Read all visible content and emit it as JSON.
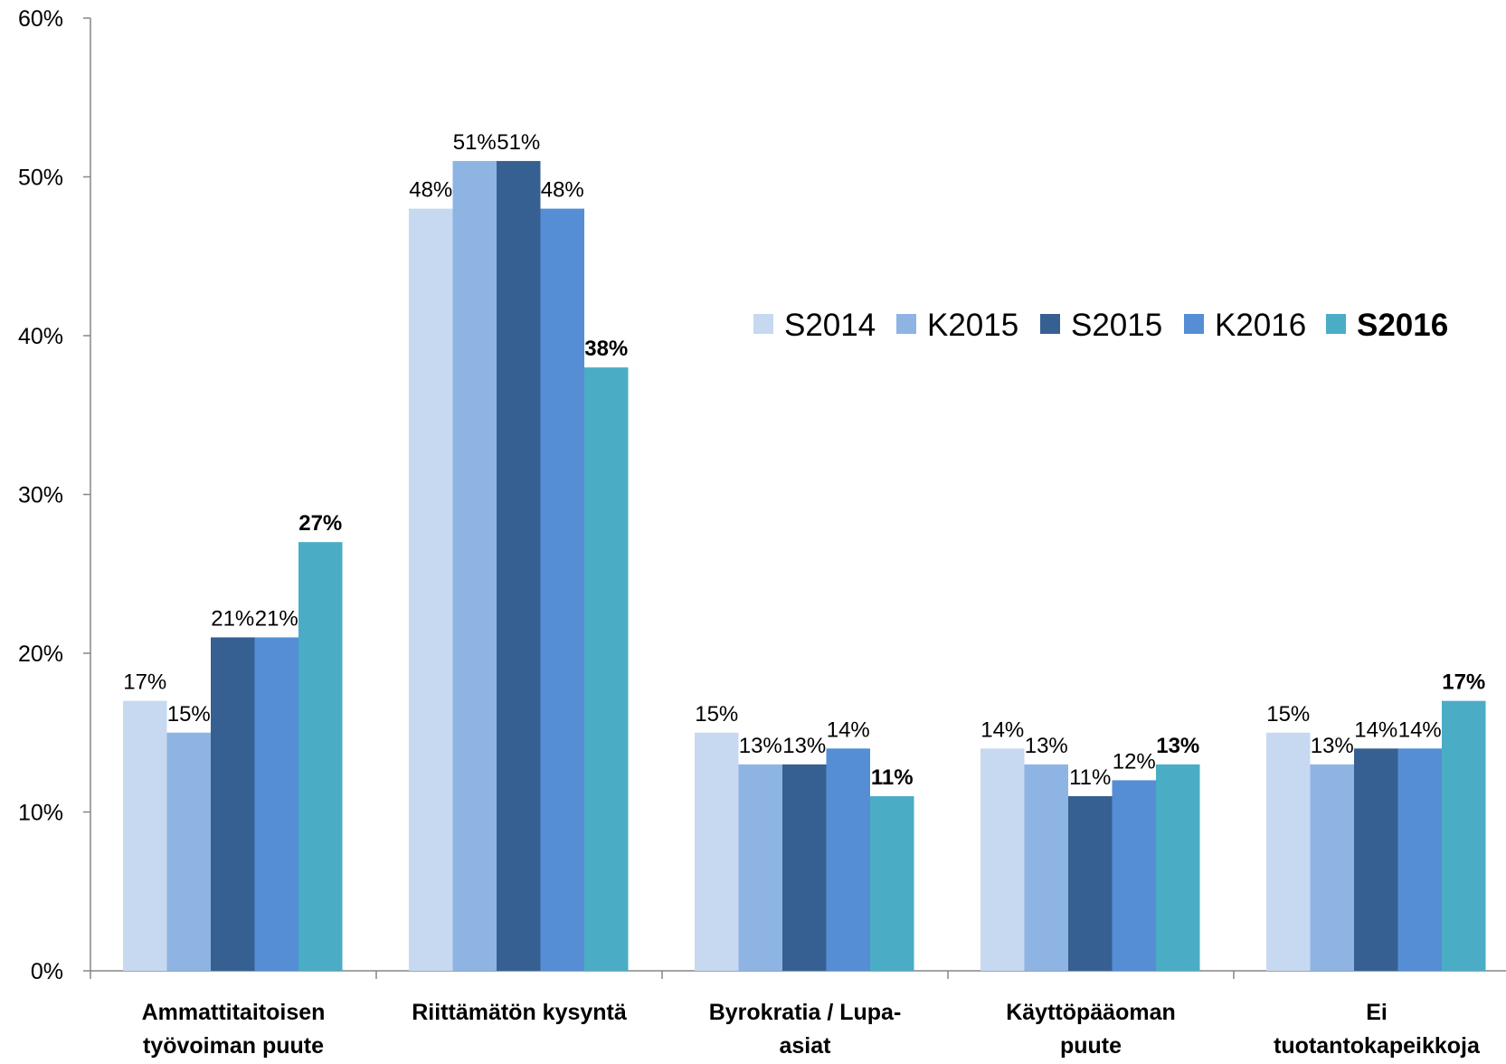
{
  "chart_data": {
    "type": "bar",
    "categories": [
      [
        "Ammattitaitoisen",
        "työvoiman puute"
      ],
      [
        "Riittämätön kysyntä"
      ],
      [
        "Byrokratia / Lupa-",
        "asiat"
      ],
      [
        "Käyttöpääoman",
        "puute"
      ],
      [
        "Ei",
        "tuotantokapeikkoja"
      ]
    ],
    "series": [
      {
        "name": "S2014",
        "color": "#c6d9f1",
        "bold": false,
        "values": [
          17,
          48,
          15,
          14,
          15
        ],
        "labels": [
          "17%",
          "48%",
          "15%",
          "14%",
          "15%"
        ]
      },
      {
        "name": "K2015",
        "color": "#8eb4e3",
        "bold": false,
        "values": [
          15,
          51,
          13,
          13,
          13
        ],
        "labels": [
          "15%",
          "51%",
          "13%",
          "13%",
          "13%"
        ]
      },
      {
        "name": "S2015",
        "color": "#376092",
        "bold": false,
        "values": [
          21,
          51,
          13,
          11,
          14
        ],
        "labels": [
          "21%",
          "51%",
          "13%",
          "11%",
          "14%"
        ]
      },
      {
        "name": "K2016",
        "color": "#558ed5",
        "bold": false,
        "values": [
          21,
          48,
          14,
          12,
          14
        ],
        "labels": [
          "21%",
          "48%",
          "14%",
          "12%",
          "14%"
        ]
      },
      {
        "name": "S2016",
        "color": "#4bacc6",
        "bold": true,
        "values": [
          27,
          38,
          11,
          13,
          17
        ],
        "labels": [
          "27%",
          "38%",
          "11%",
          "13%",
          "17%"
        ]
      }
    ],
    "yticks": [
      "0%",
      "10%",
      "20%",
      "30%",
      "40%",
      "50%",
      "60%"
    ],
    "ylim": [
      0,
      60
    ],
    "grid": false,
    "legend_position": "right, mid-upper",
    "xlabel": "",
    "ylabel": ""
  }
}
